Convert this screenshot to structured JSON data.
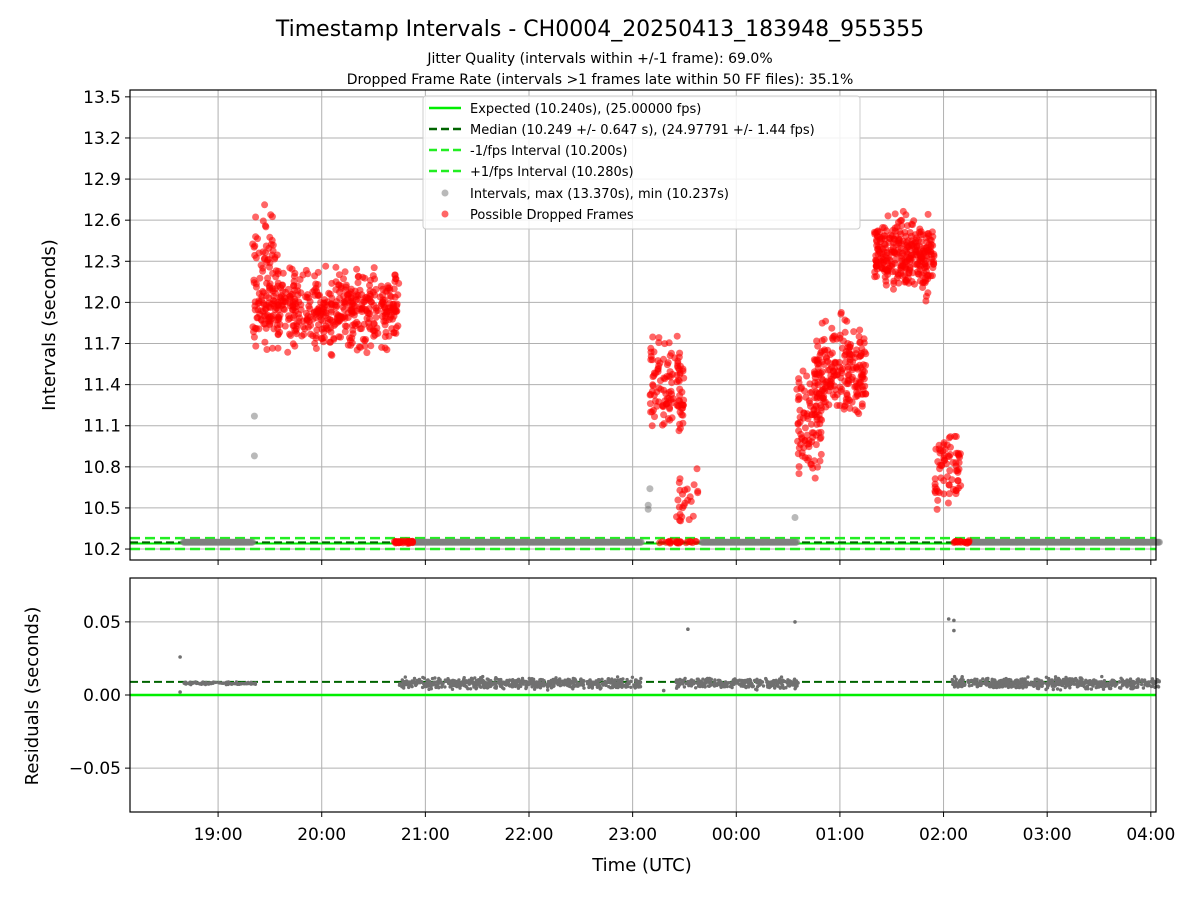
{
  "figure": {
    "title": "Timestamp Intervals - CH0004_20250413_183948_955355",
    "subtitle_1": "Jitter Quality (intervals within +/-1 frame): 69.0%",
    "subtitle_2": "Dropped Frame Rate (intervals >1 frames late within 50 FF files): 35.1%",
    "xlabel": "Time (UTC)"
  },
  "colors": {
    "expected": "#00ee00",
    "median": "#006400",
    "bounds": "#22ee22",
    "intervals": "#808080",
    "dropped": "#ff0000",
    "grid": "#b0b0b0"
  },
  "chart_data": [
    {
      "type": "scatter",
      "panel": "top",
      "ylabel": "Intervals (seconds)",
      "x_tick_labels": [
        "19:00",
        "20:00",
        "21:00",
        "22:00",
        "23:00",
        "00:00",
        "01:00",
        "02:00",
        "03:00",
        "04:00"
      ],
      "x_ticks_hours": [
        19,
        20,
        21,
        22,
        23,
        24,
        25,
        26,
        27,
        28
      ],
      "xlim_hours": [
        18.15,
        28.05
      ],
      "ylim": [
        10.12,
        13.55
      ],
      "y_ticks": [
        "10.2",
        "10.5",
        "10.8",
        "11.1",
        "11.4",
        "11.7",
        "12.0",
        "12.3",
        "12.6",
        "12.9",
        "13.2",
        "13.5"
      ],
      "grid": true,
      "legend_position": "top-center",
      "legend": [
        {
          "label": "Expected (10.240s), (25.00000 fps)",
          "style": "solid-line"
        },
        {
          "label": "Median (10.249 +/- 0.647 s), (24.97791 +/- 1.44 fps)",
          "style": "dashed-dark"
        },
        {
          "label": "-1/fps Interval (10.200s)",
          "style": "dashed-light"
        },
        {
          "label": "+1/fps Interval (10.280s)",
          "style": "dashed-light"
        },
        {
          "label": "Intervals, max (13.370s), min (10.237s)",
          "style": "gray-dot"
        },
        {
          "label": "Possible Dropped Frames",
          "style": "red-dot"
        }
      ],
      "reference_lines": {
        "expected": 10.24,
        "median": 10.249,
        "lower": 10.2,
        "upper": 10.28
      },
      "normal_interval_segments": [
        {
          "x_start": "18:40",
          "x_end": "19:20",
          "y": 10.25
        },
        {
          "x_start": "20:50",
          "x_end": "23:05",
          "y": 10.25
        },
        {
          "x_start": "23:40",
          "x_end": "00:35",
          "y": 10.25
        },
        {
          "x_start": "02:15",
          "x_end": "04:05",
          "y": 10.25
        }
      ],
      "outlier_intervals": [
        {
          "x": "19:21",
          "y": 10.88
        },
        {
          "x": "19:21",
          "y": 11.17
        },
        {
          "x": "23:09",
          "y": 10.49
        },
        {
          "x": "23:09",
          "y": 10.52
        },
        {
          "x": "23:10",
          "y": 10.64
        },
        {
          "x": "00:34",
          "y": 10.43
        }
      ],
      "dropped_clusters": [
        {
          "x_start": "19:20",
          "x_end": "20:45",
          "y_center": 11.95,
          "y_spread": 0.28,
          "count": 520
        },
        {
          "x_start": "19:20",
          "x_end": "19:35",
          "y_center": 12.35,
          "y_spread": 0.3,
          "count": 45
        },
        {
          "x_start": "20:42",
          "x_end": "20:53",
          "y_center": 10.25,
          "y_spread": 0.01,
          "count": 30
        },
        {
          "x_start": "23:10",
          "x_end": "23:30",
          "y_center": 11.35,
          "y_spread": 0.38,
          "count": 120
        },
        {
          "x_start": "23:25",
          "x_end": "23:38",
          "y_center": 10.55,
          "y_spread": 0.25,
          "count": 25
        },
        {
          "x_start": "23:15",
          "x_end": "23:38",
          "y_center": 10.25,
          "y_spread": 0.01,
          "count": 25
        },
        {
          "x_start": "00:35",
          "x_end": "00:50",
          "y_center": 11.1,
          "y_spread": 0.4,
          "count": 90
        },
        {
          "x_start": "00:45",
          "x_end": "01:15",
          "y_center": 11.5,
          "y_spread": 0.35,
          "count": 220
        },
        {
          "x_start": "01:20",
          "x_end": "01:55",
          "y_center": 12.35,
          "y_spread": 0.28,
          "count": 300
        },
        {
          "x_start": "01:55",
          "x_end": "02:10",
          "y_center": 10.8,
          "y_spread": 0.3,
          "count": 70
        },
        {
          "x_start": "02:05",
          "x_end": "02:15",
          "y_center": 10.25,
          "y_spread": 0.01,
          "count": 20
        }
      ]
    },
    {
      "type": "scatter",
      "panel": "bottom",
      "ylabel": "Residuals (seconds)",
      "xlabel": "Time (UTC)",
      "x_tick_labels": [
        "19:00",
        "20:00",
        "21:00",
        "22:00",
        "23:00",
        "00:00",
        "01:00",
        "02:00",
        "03:00",
        "04:00"
      ],
      "xlim_hours": [
        18.15,
        28.05
      ],
      "ylim": [
        -0.08,
        0.08
      ],
      "y_ticks": [
        "0.05",
        "0.00",
        "−0.05"
      ],
      "grid": true,
      "reference_lines": {
        "zero": 0.0,
        "median": 0.009
      },
      "clusters": [
        {
          "x_start": "18:40",
          "x_end": "19:22",
          "y_center": 0.008,
          "y_spread": 0.0008,
          "count": 90
        },
        {
          "x_start": "20:45",
          "x_end": "23:05",
          "y_center": 0.008,
          "y_spread": 0.0035,
          "count": 620
        },
        {
          "x_start": "23:25",
          "x_end": "00:36",
          "y_center": 0.008,
          "y_spread": 0.0035,
          "count": 300
        },
        {
          "x_start": "02:05",
          "x_end": "04:05",
          "y_center": 0.008,
          "y_spread": 0.0035,
          "count": 560
        }
      ],
      "outliers": [
        {
          "x": "18:38",
          "y": 0.026
        },
        {
          "x": "18:38",
          "y": 0.002
        },
        {
          "x": "23:32",
          "y": 0.045
        },
        {
          "x": "00:34",
          "y": 0.05
        },
        {
          "x": "02:03",
          "y": 0.052
        },
        {
          "x": "02:06",
          "y": 0.051
        },
        {
          "x": "02:06",
          "y": 0.044
        },
        {
          "x": "23:18",
          "y": 0.003
        }
      ]
    }
  ]
}
